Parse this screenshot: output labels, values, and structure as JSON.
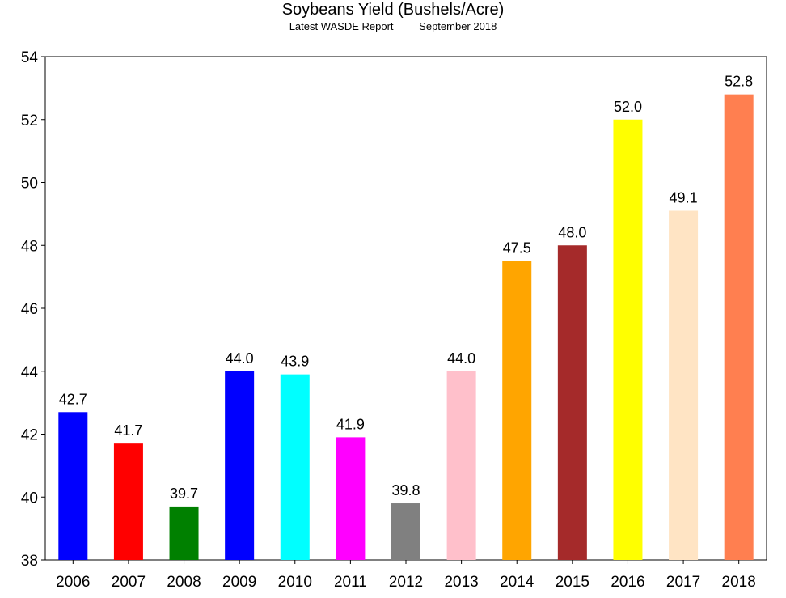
{
  "chart_data": {
    "type": "bar",
    "title": "Soybeans Yield (Bushels/Acre)",
    "subtitle_left": "Latest WASDE Report",
    "subtitle_right": "September 2018",
    "xlabel": "",
    "ylabel": "",
    "categories": [
      "2006",
      "2007",
      "2008",
      "2009",
      "2010",
      "2011",
      "2012",
      "2013",
      "2014",
      "2015",
      "2016",
      "2017",
      "2018"
    ],
    "values": [
      42.7,
      41.7,
      39.7,
      44.0,
      43.9,
      41.9,
      39.8,
      44.0,
      47.5,
      48.0,
      52.0,
      49.1,
      52.8
    ],
    "data_labels": [
      "42.7",
      "41.7",
      "39.7",
      "44.0",
      "43.9",
      "41.9",
      "39.8",
      "44.0",
      "47.5",
      "48.0",
      "52.0",
      "49.1",
      "52.8"
    ],
    "colors": [
      "#0000ff",
      "#ff0000",
      "#008000",
      "#0000ff",
      "#00ffff",
      "#ff00ff",
      "#808080",
      "#ffc0cb",
      "#ffa500",
      "#a52a2a",
      "#ffff00",
      "#ffe4c4",
      "#ff7f50"
    ],
    "ylim": [
      38,
      54
    ],
    "yticks": [
      38,
      40,
      42,
      44,
      46,
      48,
      50,
      52,
      54
    ],
    "grid": false,
    "legend": "none"
  }
}
